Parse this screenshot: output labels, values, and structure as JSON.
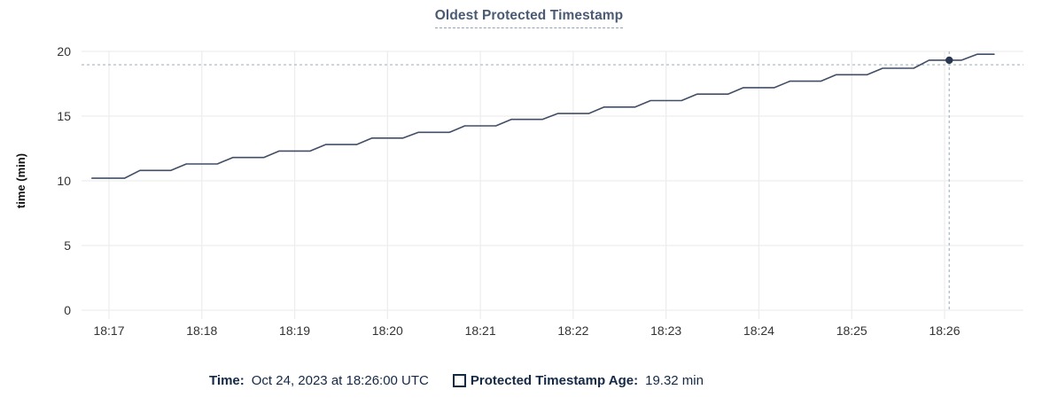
{
  "title": "Oldest Protected Timestamp",
  "colors": {
    "line": "#414e66",
    "dot": "#2a3750",
    "grid": "#ededed",
    "crosshair": "#a4b6c2",
    "tick_text": "#333333",
    "title_text": "#4b5a74",
    "legend_text": "#152945"
  },
  "chart_data": {
    "type": "line",
    "title": "Oldest Protected Timestamp",
    "xlabel": "",
    "ylabel": "time (min)",
    "ylim": [
      0,
      20
    ],
    "y_ticks": [
      0,
      5,
      10,
      15,
      20
    ],
    "x_tick_labels": [
      "18:17",
      "18:18",
      "18:19",
      "18:20",
      "18:21",
      "18:22",
      "18:23",
      "18:24",
      "18:25",
      "18:26"
    ],
    "x_tick_offsets_s": [
      0,
      60,
      120,
      180,
      240,
      300,
      360,
      420,
      480,
      540
    ],
    "grid": true,
    "legend_position": "bottom",
    "series": [
      {
        "name": "Protected Timestamp Age",
        "unit": "min",
        "points": [
          [
            -11,
            10.2
          ],
          [
            10,
            10.2
          ],
          [
            20,
            10.8
          ],
          [
            40,
            10.8
          ],
          [
            50,
            11.3
          ],
          [
            70,
            11.3
          ],
          [
            80,
            11.8
          ],
          [
            100,
            11.8
          ],
          [
            110,
            12.3
          ],
          [
            130,
            12.3
          ],
          [
            140,
            12.8
          ],
          [
            160,
            12.8
          ],
          [
            170,
            13.3
          ],
          [
            190,
            13.3
          ],
          [
            200,
            13.75
          ],
          [
            220,
            13.75
          ],
          [
            230,
            14.25
          ],
          [
            250,
            14.25
          ],
          [
            260,
            14.75
          ],
          [
            280,
            14.75
          ],
          [
            290,
            15.2
          ],
          [
            310,
            15.2
          ],
          [
            320,
            15.7
          ],
          [
            340,
            15.7
          ],
          [
            350,
            16.2
          ],
          [
            370,
            16.2
          ],
          [
            380,
            16.7
          ],
          [
            400,
            16.7
          ],
          [
            410,
            17.2
          ],
          [
            430,
            17.2
          ],
          [
            440,
            17.7
          ],
          [
            460,
            17.7
          ],
          [
            470,
            18.2
          ],
          [
            490,
            18.2
          ],
          [
            500,
            18.7
          ],
          [
            520,
            18.7
          ],
          [
            530,
            19.32
          ],
          [
            551,
            19.32
          ],
          [
            561,
            19.78
          ],
          [
            572,
            19.78
          ]
        ]
      }
    ],
    "crosshair": {
      "time_label": "18:26:00",
      "t_s": 543,
      "value_min": 19.32,
      "hline_min": 18.97
    }
  },
  "legend": {
    "time_key": "Time:",
    "time_value": "Oct 24, 2023 at 18:26:00 UTC",
    "age_key": "Protected Timestamp Age:",
    "age_value": "19.32 min"
  }
}
